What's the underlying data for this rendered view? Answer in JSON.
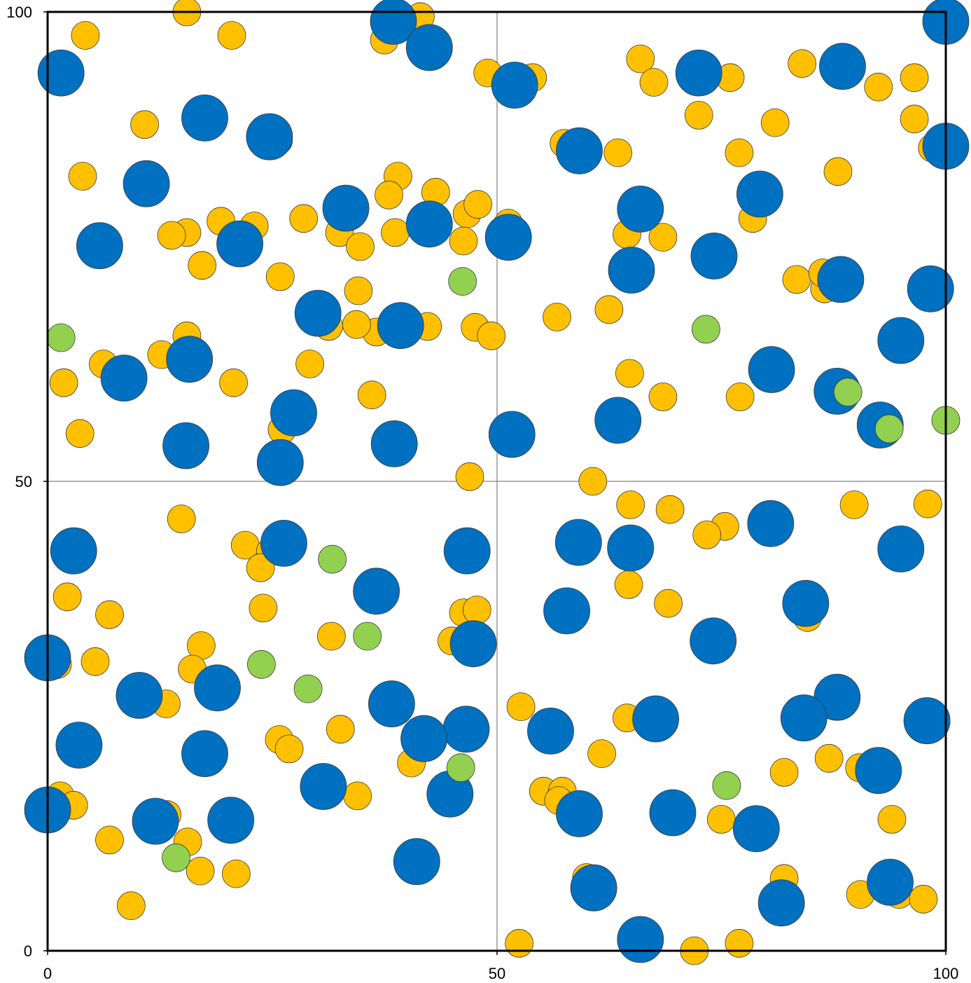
{
  "chart_data": {
    "type": "scatter",
    "title": "",
    "xlabel": "",
    "ylabel": "",
    "xlim": [
      0,
      100
    ],
    "ylim": [
      0,
      100
    ],
    "x_ticks": [
      "0",
      "50",
      "100"
    ],
    "y_ticks": [
      "0",
      "50",
      "100"
    ],
    "grid": "midlines at 50",
    "legend": "none",
    "colors": {
      "blue": "#0070C0",
      "yellow": "#FFC000",
      "green": "#92D050"
    },
    "series": [
      {
        "color": "#FFC000",
        "points": [
          [
            15.5,
            100
          ],
          [
            4.2,
            97.5
          ],
          [
            20.5,
            97.5
          ],
          [
            41.5,
            99.5
          ],
          [
            37.5,
            97
          ],
          [
            49,
            93.5
          ],
          [
            54,
            93
          ],
          [
            66,
            95
          ],
          [
            67.5,
            92.5
          ],
          [
            76,
            93
          ],
          [
            92.5,
            92
          ],
          [
            84,
            94.5
          ],
          [
            96.5,
            93
          ],
          [
            10.8,
            88
          ],
          [
            3.9,
            82.5
          ],
          [
            25.7,
            86.3
          ],
          [
            57.5,
            86
          ],
          [
            63.5,
            85
          ],
          [
            72.5,
            89
          ],
          [
            81,
            88.2
          ],
          [
            96.5,
            88.6
          ],
          [
            77,
            85
          ],
          [
            88,
            83
          ],
          [
            98.5,
            85.5
          ],
          [
            39,
            82.5
          ],
          [
            38,
            80.5
          ],
          [
            43.2,
            80.8
          ],
          [
            28.5,
            78
          ],
          [
            32.5,
            76.5
          ],
          [
            46.7,
            78.5
          ],
          [
            47.9,
            79.5
          ],
          [
            38.7,
            76.5
          ],
          [
            34.8,
            75
          ],
          [
            23,
            77.2
          ],
          [
            19.3,
            77.7
          ],
          [
            15.5,
            76.5
          ],
          [
            13.8,
            76.2
          ],
          [
            46.3,
            75.6
          ],
          [
            51.3,
            77.5
          ],
          [
            68.5,
            76
          ],
          [
            64.5,
            76.3
          ],
          [
            78.5,
            78
          ],
          [
            17.2,
            73
          ],
          [
            25.9,
            71.8
          ],
          [
            34.6,
            70.3
          ],
          [
            56.7,
            67.5
          ],
          [
            62.5,
            68.3
          ],
          [
            83.4,
            71.5
          ],
          [
            86.5,
            70.5
          ],
          [
            86.3,
            72.2
          ],
          [
            36.6,
            65.9
          ],
          [
            39.5,
            66
          ],
          [
            42.3,
            66.5
          ],
          [
            47.6,
            66.4
          ],
          [
            49.4,
            65.5
          ],
          [
            31.3,
            66.5
          ],
          [
            34.4,
            66.7
          ],
          [
            15.5,
            65.5
          ],
          [
            29.2,
            62.5
          ],
          [
            12.7,
            63.5
          ],
          [
            6.2,
            62.5
          ],
          [
            1.8,
            60.5
          ],
          [
            20.7,
            60.5
          ],
          [
            64.8,
            61.5
          ],
          [
            68.5,
            59
          ],
          [
            77.1,
            59
          ],
          [
            36.1,
            59.2
          ],
          [
            26.1,
            55.5
          ],
          [
            3.6,
            55.1
          ],
          [
            47,
            50.5
          ],
          [
            60.7,
            50
          ],
          [
            64.9,
            47.5
          ],
          [
            69.3,
            47
          ],
          [
            75.4,
            45.2
          ],
          [
            73.4,
            44.3
          ],
          [
            80.5,
            45.8
          ],
          [
            89.8,
            47.5
          ],
          [
            98,
            47.6
          ],
          [
            14.9,
            46
          ],
          [
            3.4,
            43.5
          ],
          [
            22,
            43.2
          ],
          [
            24.8,
            42.5
          ],
          [
            23.7,
            40.8
          ],
          [
            2.2,
            37.7
          ],
          [
            24,
            36.5
          ],
          [
            64.7,
            39
          ],
          [
            69.1,
            37
          ],
          [
            46.3,
            36
          ],
          [
            47.8,
            36.3
          ],
          [
            84.6,
            35.5
          ],
          [
            6.9,
            35.8
          ],
          [
            31.6,
            33.5
          ],
          [
            45,
            33
          ],
          [
            17.1,
            32.5
          ],
          [
            1.1,
            30.5
          ],
          [
            5.3,
            30.8
          ],
          [
            16.1,
            30
          ],
          [
            13.2,
            26.3
          ],
          [
            52.7,
            26
          ],
          [
            64.5,
            24.8
          ],
          [
            32.6,
            23.6
          ],
          [
            25.8,
            22.5
          ],
          [
            26.9,
            21.5
          ],
          [
            61.7,
            21
          ],
          [
            87,
            20.5
          ],
          [
            90.4,
            19.5
          ],
          [
            82,
            19
          ],
          [
            1.4,
            16.5
          ],
          [
            2.9,
            15.5
          ],
          [
            34.5,
            16.5
          ],
          [
            40.5,
            20
          ],
          [
            55.2,
            17
          ],
          [
            57.3,
            17
          ],
          [
            56.9,
            16
          ],
          [
            13.3,
            14.5
          ],
          [
            94,
            14
          ],
          [
            75,
            14
          ],
          [
            6.9,
            11.8
          ],
          [
            15.6,
            11.6
          ],
          [
            17,
            8.5
          ],
          [
            21,
            8.2
          ],
          [
            9.3,
            4.8
          ],
          [
            60,
            7.8
          ],
          [
            82,
            7.7
          ],
          [
            94.8,
            6
          ],
          [
            97.5,
            5.5
          ],
          [
            90.5,
            6
          ],
          [
            52.5,
            0.8
          ],
          [
            77,
            0.8
          ],
          [
            72,
            0
          ]
        ],
        "size": "small"
      },
      {
        "color": "#0070C0",
        "points": [
          [
            1.5,
            93.5
          ],
          [
            38.5,
            99
          ],
          [
            42.5,
            96.2
          ],
          [
            52,
            92.2
          ],
          [
            72.5,
            93.5
          ],
          [
            88.5,
            94.2
          ],
          [
            100,
            99
          ],
          [
            17.5,
            88.7
          ],
          [
            24.7,
            86.7
          ],
          [
            11,
            81.7
          ],
          [
            59.2,
            85.2
          ],
          [
            79.3,
            80.6
          ],
          [
            100,
            85.7
          ],
          [
            33.2,
            79.1
          ],
          [
            5.8,
            75.1
          ],
          [
            21.4,
            75.3
          ],
          [
            42.5,
            77.4
          ],
          [
            51.3,
            76
          ],
          [
            66,
            79
          ],
          [
            74.2,
            74
          ],
          [
            65,
            72.5
          ],
          [
            88.3,
            71.5
          ],
          [
            98.3,
            70.5
          ],
          [
            30.1,
            67.9
          ],
          [
            39.3,
            66.6
          ],
          [
            8.5,
            61
          ],
          [
            15.8,
            63
          ],
          [
            80.6,
            61.9
          ],
          [
            87.9,
            59.6
          ],
          [
            95,
            65
          ],
          [
            27.4,
            57.3
          ],
          [
            63.5,
            56.5
          ],
          [
            92.7,
            56
          ],
          [
            51.7,
            55
          ],
          [
            15.4,
            53.8
          ],
          [
            38.6,
            54
          ],
          [
            25.9,
            52
          ],
          [
            46.7,
            42.6
          ],
          [
            80.5,
            45.5
          ],
          [
            59.1,
            43.5
          ],
          [
            64.9,
            42.9
          ],
          [
            95,
            42.8
          ],
          [
            2.9,
            42.6
          ],
          [
            26.3,
            43.4
          ],
          [
            36.6,
            38.3
          ],
          [
            84.4,
            37
          ],
          [
            57.8,
            36.2
          ],
          [
            74.1,
            33
          ],
          [
            47.4,
            32.7
          ],
          [
            0,
            31.2
          ],
          [
            18.9,
            28
          ],
          [
            10.2,
            27.2
          ],
          [
            38.3,
            26.3
          ],
          [
            87.9,
            27
          ],
          [
            97.9,
            24.5
          ],
          [
            56,
            23.4
          ],
          [
            84.2,
            24.8
          ],
          [
            67.7,
            24.7
          ],
          [
            46.6,
            23.6
          ],
          [
            41.9,
            22.6
          ],
          [
            3.5,
            21.9
          ],
          [
            17.5,
            21
          ],
          [
            30.7,
            17.5
          ],
          [
            44.8,
            16.7
          ],
          [
            92.5,
            19.2
          ],
          [
            0,
            15
          ],
          [
            12,
            13.8
          ],
          [
            20.4,
            13.9
          ],
          [
            59.2,
            14.6
          ],
          [
            69.6,
            14.7
          ],
          [
            78.9,
            13
          ],
          [
            41.1,
            9.5
          ],
          [
            60.8,
            6.7
          ],
          [
            93.8,
            7.3
          ],
          [
            81.7,
            5.1
          ],
          [
            66,
            1.2
          ]
        ],
        "size": "large"
      },
      {
        "color": "#92D050",
        "points": [
          [
            1.5,
            65.3
          ],
          [
            46.2,
            71.3
          ],
          [
            73.3,
            66.2
          ],
          [
            89.1,
            59.5
          ],
          [
            93.7,
            55.6
          ],
          [
            100,
            56.5
          ],
          [
            31.7,
            41.7
          ],
          [
            35.6,
            33.5
          ],
          [
            23.8,
            30.5
          ],
          [
            29,
            27.9
          ],
          [
            46,
            19.5
          ],
          [
            75.6,
            17.6
          ],
          [
            14.3,
            9.9
          ]
        ],
        "size": "small"
      }
    ]
  }
}
